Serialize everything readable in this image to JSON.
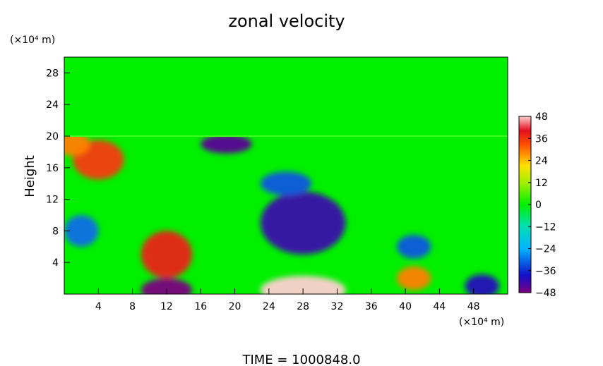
{
  "chart_data": {
    "type": "heatmap",
    "title": "zonal velocity",
    "ylabel": "Height",
    "y_unit": "(×10⁴ m)",
    "x_unit": "(×10⁴ m)",
    "footer": "TIME  =  1000848.0",
    "xlim": [
      0,
      52
    ],
    "ylim": [
      0,
      30
    ],
    "x_ticks": [
      4,
      8,
      12,
      16,
      20,
      24,
      28,
      32,
      36,
      40,
      44,
      48
    ],
    "y_ticks": [
      4,
      8,
      12,
      16,
      20,
      24,
      28
    ],
    "colorbar": {
      "ticks": [
        48,
        36,
        24,
        12,
        0,
        -12,
        -24,
        -36,
        -48
      ],
      "min": -48,
      "max": 48
    },
    "field": {
      "upper_layer_value": 0,
      "upper_layer_bottom": 20,
      "features": [
        {
          "x": 28,
          "y": 9,
          "rx": 5,
          "ry": 4,
          "value": -42
        },
        {
          "x": 12,
          "y": 5,
          "rx": 3,
          "ry": 3,
          "value": 38
        },
        {
          "x": 12,
          "y": 0.5,
          "rx": 3,
          "ry": 1.5,
          "value": -48
        },
        {
          "x": 28,
          "y": 0.5,
          "rx": 5,
          "ry": 1.8,
          "value": 48
        },
        {
          "x": 19,
          "y": 19,
          "rx": 3,
          "ry": 1.2,
          "value": -45
        },
        {
          "x": 4,
          "y": 17,
          "rx": 3,
          "ry": 2.5,
          "value": 36
        },
        {
          "x": 26,
          "y": 14,
          "rx": 3,
          "ry": 1.5,
          "value": -32
        },
        {
          "x": 41,
          "y": 6,
          "rx": 2,
          "ry": 1.5,
          "value": -32
        },
        {
          "x": 49,
          "y": 1,
          "rx": 2,
          "ry": 1.5,
          "value": -40
        },
        {
          "x": 41,
          "y": 2,
          "rx": 2,
          "ry": 1.5,
          "value": 30
        },
        {
          "x": 2,
          "y": 8,
          "rx": 2,
          "ry": 2,
          "value": -30
        },
        {
          "x": 1,
          "y": 19,
          "rx": 2,
          "ry": 1.5,
          "value": 30
        }
      ]
    }
  }
}
